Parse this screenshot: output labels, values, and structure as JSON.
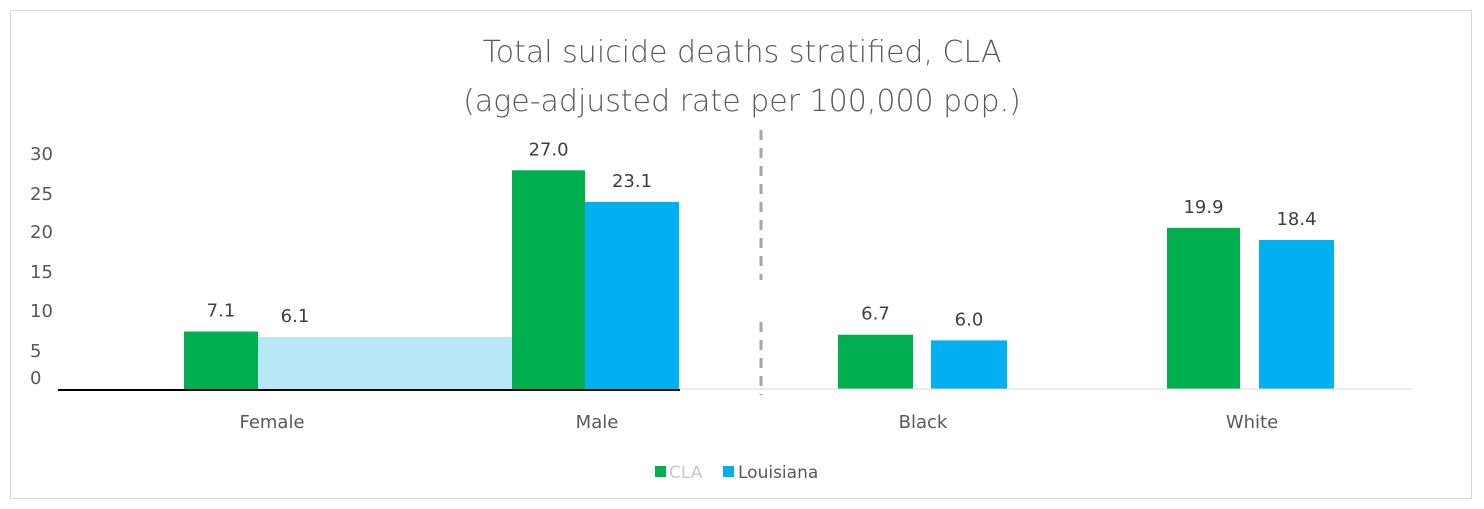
{
  "chart_data": {
    "type": "bar",
    "title_lines": [
      "Total suicide deaths stratified, CLA",
      "(age-adjusted rate per 100,000 pop.)"
    ],
    "categories": [
      "Female",
      "Male",
      "Black",
      "White"
    ],
    "series": [
      {
        "name": "CLA",
        "color": "#00b050",
        "values": [
          7.1,
          27.0,
          6.7,
          19.9
        ],
        "labels": [
          "7.1",
          "27.0",
          "6.7",
          "19.9"
        ]
      },
      {
        "name": "Louisiana",
        "color": "#00b0f0",
        "values": [
          6.1,
          23.1,
          6.0,
          18.4
        ],
        "labels": [
          "6.1",
          "23.1",
          "6.0",
          "18.4"
        ]
      }
    ],
    "y_ticks": [
      "0",
      "5",
      "10",
      "15",
      "20",
      "25",
      "30"
    ],
    "ylim": [
      0,
      30
    ],
    "legend_position": "bottom",
    "separator": "dashed line between Male and Black",
    "grid": false
  }
}
